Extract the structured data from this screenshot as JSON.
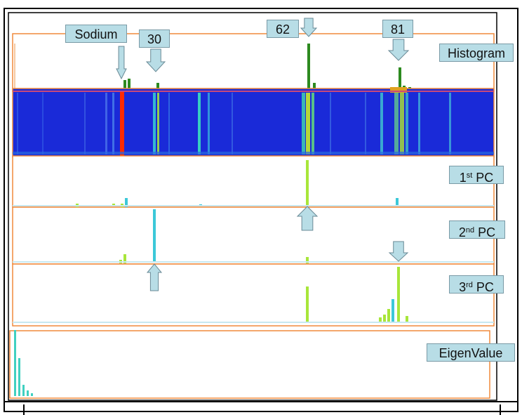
{
  "labels": {
    "sodium": "Sodium",
    "n30": "30",
    "n62": "62",
    "n81": "81",
    "histogram": "Histogram",
    "pc1_num": "1",
    "pc1_sup": "st",
    "pc1_rest": " PC",
    "pc2_num": "2",
    "pc2_sup": "nd",
    "pc2_rest": " PC",
    "pc3_num": "3",
    "pc3_sup": "rd",
    "pc3_rest": " PC",
    "eigen": "EigenValue"
  },
  "colors": {
    "frame": "#000000",
    "panel_border": "#f08a3c",
    "heatmap_bg": "#1a2ad8",
    "sodium_band": "#ff2a00",
    "histogram_bar": "#2d8a1f",
    "pc_bar_green": "#a8e63a",
    "pc_bar_cyan": "#3cc8d8",
    "eigen_bar": "#40d0c0",
    "label_fill": "#b8dde6",
    "arrow_fill": "#b8dde6",
    "arrow_stroke": "#6a8a96"
  },
  "icons": [
    "down-arrow-icon",
    "up-arrow-icon"
  ]
}
